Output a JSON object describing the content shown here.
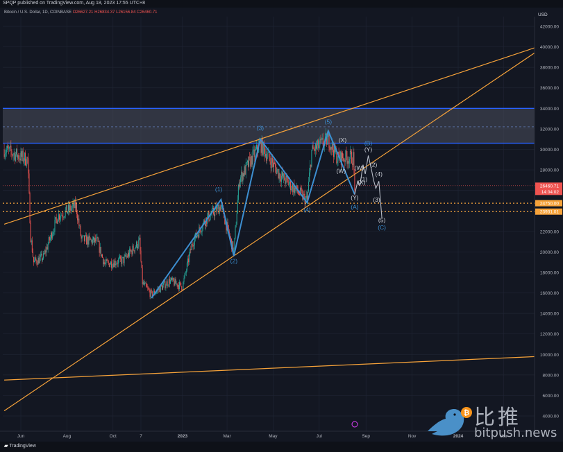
{
  "publisher_line": "SPQP published on TradingView.com, Aug 18, 2023 17:55 UTC+8",
  "legend": {
    "symbol": "Bitcoin / U.S. Dollar, 1D, COINBASE",
    "open": "O26627.21",
    "high": "H26834.37",
    "low": "L26156.84",
    "close": "C26460.71"
  },
  "footer": {
    "logo": "TradingView"
  },
  "watermark": {
    "cn": "比推",
    "url": "bitpush.news"
  },
  "colors": {
    "background": "#131722",
    "trendline": "#f7a33a",
    "wave": "#3d8fd1",
    "zone_border": "#2962ff",
    "up": "#26a69a",
    "down": "#ef5350"
  },
  "chart_data": {
    "type": "candlestick",
    "currency_label": "USD",
    "y_ticks": [
      4000,
      6000,
      8000,
      10000,
      12000,
      14000,
      16000,
      18000,
      20000,
      22000,
      24000,
      26000,
      28000,
      30000,
      32000,
      34000,
      36000,
      38000,
      40000,
      42000
    ],
    "x_ticks": [
      "Jun",
      "Aug",
      "Oct",
      "7",
      "2023",
      "Mar",
      "May",
      "Jul",
      "Sep",
      "Nov",
      "2024",
      "Mar"
    ],
    "x_tick_dates": [
      "2022-06-01",
      "2022-08-01",
      "2022-10-01",
      "2022-11-07",
      "2023-01-01",
      "2023-03-01",
      "2023-05-01",
      "2023-07-01",
      "2023-09-01",
      "2023-11-01",
      "2024-01-01",
      "2024-03-01"
    ],
    "price_labels": [
      {
        "value": 26460.71,
        "text": "26460.71",
        "sub": "14:04:02",
        "color": "#ef5350"
      },
      {
        "value": 24750.0,
        "text": "24750.00",
        "color": "#f7a33a"
      },
      {
        "value": 23931.01,
        "text": "23931.01",
        "color": "#f7a33a"
      }
    ],
    "resistance_zone": [
      30600,
      34000
    ],
    "horizontal_levels": [
      24750,
      23931.01
    ],
    "trendlines": [
      {
        "from": {
          "date": "2022-05-10",
          "price": 22700
        },
        "to": {
          "date": "2024-04-15",
          "price": 40000
        }
      },
      {
        "from": {
          "date": "2022-05-10",
          "price": 4500
        },
        "to": {
          "date": "2024-04-15",
          "price": 39600
        }
      },
      {
        "from": {
          "date": "2022-05-10",
          "price": 7500
        },
        "to": {
          "date": "2024-04-15",
          "price": 9800
        }
      }
    ],
    "wave_path": [
      {
        "date": "2022-11-21",
        "price": 15500
      },
      {
        "date": "2023-02-21",
        "price": 25100
      },
      {
        "date": "2023-03-10",
        "price": 19600
      },
      {
        "date": "2023-04-14",
        "price": 31000
      },
      {
        "date": "2023-06-15",
        "price": 24800
      },
      {
        "date": "2023-07-13",
        "price": 31800
      },
      {
        "date": "2023-08-17",
        "price": 25600
      }
    ],
    "projection_path": [
      {
        "date": "2023-08-17",
        "price": 25600
      },
      {
        "date": "2023-08-21",
        "price": 26900
      },
      {
        "date": "2023-08-24",
        "price": 26500
      },
      {
        "date": "2023-08-28",
        "price": 28500
      },
      {
        "date": "2023-08-31",
        "price": 27600
      },
      {
        "date": "2023-09-04",
        "price": 29400
      },
      {
        "date": "2023-09-08",
        "price": 28100
      },
      {
        "date": "2023-09-11",
        "price": 27000
      },
      {
        "date": "2023-09-14",
        "price": 26200
      },
      {
        "date": "2023-09-18",
        "price": 26900
      },
      {
        "date": "2023-09-22",
        "price": 23300
      }
    ],
    "wave_labels": [
      {
        "text": "(1)",
        "date": "2023-02-18",
        "price": 25900,
        "color": "#3d8fd1"
      },
      {
        "text": "(2)",
        "date": "2023-03-10",
        "price": 18900,
        "color": "#3d8fd1"
      },
      {
        "text": "(3)",
        "date": "2023-04-14",
        "price": 31900,
        "color": "#3d8fd1"
      },
      {
        "text": "(4)",
        "date": "2023-06-15",
        "price": 23900,
        "color": "#3d8fd1"
      },
      {
        "text": "(5)",
        "date": "2023-07-13",
        "price": 32500,
        "color": "#3d8fd1"
      },
      {
        "text": "(X)",
        "date": "2023-08-01",
        "price": 30700,
        "color": "#d1d4dc"
      },
      {
        "text": "(W)",
        "date": "2023-07-30",
        "price": 27700,
        "color": "#d1d4dc"
      },
      {
        "text": "(Y)",
        "date": "2023-08-17",
        "price": 25100,
        "color": "#d1d4dc"
      },
      {
        "text": "(A)",
        "date": "2023-08-17",
        "price": 24200,
        "color": "#3d8fd1"
      },
      {
        "text": "(W)",
        "date": "2023-08-23",
        "price": 28000,
        "color": "#d1d4dc"
      },
      {
        "text": "(X)",
        "date": "2023-08-26",
        "price": 26600,
        "color": "#d1d4dc"
      },
      {
        "text": "(1)",
        "date": "2023-08-29",
        "price": 26900,
        "color": "#d1d4dc"
      },
      {
        "text": "(B)",
        "date": "2023-09-04",
        "price": 30400,
        "color": "#3d8fd1"
      },
      {
        "text": "(Y)",
        "date": "2023-09-04",
        "price": 29800,
        "color": "#d1d4dc"
      },
      {
        "text": "(2)",
        "date": "2023-09-11",
        "price": 28300,
        "color": "#d1d4dc"
      },
      {
        "text": "(4)",
        "date": "2023-09-18",
        "price": 27400,
        "color": "#d1d4dc"
      },
      {
        "text": "(3)",
        "date": "2023-09-15",
        "price": 24900,
        "color": "#d1d4dc"
      },
      {
        "text": "(5)",
        "date": "2023-09-22",
        "price": 22900,
        "color": "#d1d4dc"
      },
      {
        "text": "(C)",
        "date": "2023-09-22",
        "price": 22200,
        "color": "#3d8fd1"
      }
    ],
    "ohlc_anchors": [
      {
        "date": "2022-05-10",
        "price": 30000
      },
      {
        "date": "2022-05-25",
        "price": 29500
      },
      {
        "date": "2022-06-10",
        "price": 29000
      },
      {
        "date": "2022-06-14",
        "price": 21500
      },
      {
        "date": "2022-06-18",
        "price": 19000
      },
      {
        "date": "2022-07-01",
        "price": 19500
      },
      {
        "date": "2022-07-20",
        "price": 23500
      },
      {
        "date": "2022-08-13",
        "price": 24500
      },
      {
        "date": "2022-08-20",
        "price": 21200
      },
      {
        "date": "2022-09-10",
        "price": 21000
      },
      {
        "date": "2022-09-20",
        "price": 18800
      },
      {
        "date": "2022-10-15",
        "price": 19200
      },
      {
        "date": "2022-11-05",
        "price": 21000
      },
      {
        "date": "2022-11-09",
        "price": 17000
      },
      {
        "date": "2022-11-21",
        "price": 15800
      },
      {
        "date": "2022-12-15",
        "price": 17200
      },
      {
        "date": "2023-01-01",
        "price": 16600
      },
      {
        "date": "2023-01-14",
        "price": 20900
      },
      {
        "date": "2023-01-31",
        "price": 23100
      },
      {
        "date": "2023-02-21",
        "price": 24500
      },
      {
        "date": "2023-03-10",
        "price": 20000
      },
      {
        "date": "2023-03-17",
        "price": 27000
      },
      {
        "date": "2023-04-14",
        "price": 30500
      },
      {
        "date": "2023-05-10",
        "price": 27500
      },
      {
        "date": "2023-06-15",
        "price": 25000
      },
      {
        "date": "2023-06-21",
        "price": 29800
      },
      {
        "date": "2023-07-13",
        "price": 31000
      },
      {
        "date": "2023-07-25",
        "price": 29200
      },
      {
        "date": "2023-08-15",
        "price": 29200
      },
      {
        "date": "2023-08-17",
        "price": 26400
      }
    ]
  }
}
